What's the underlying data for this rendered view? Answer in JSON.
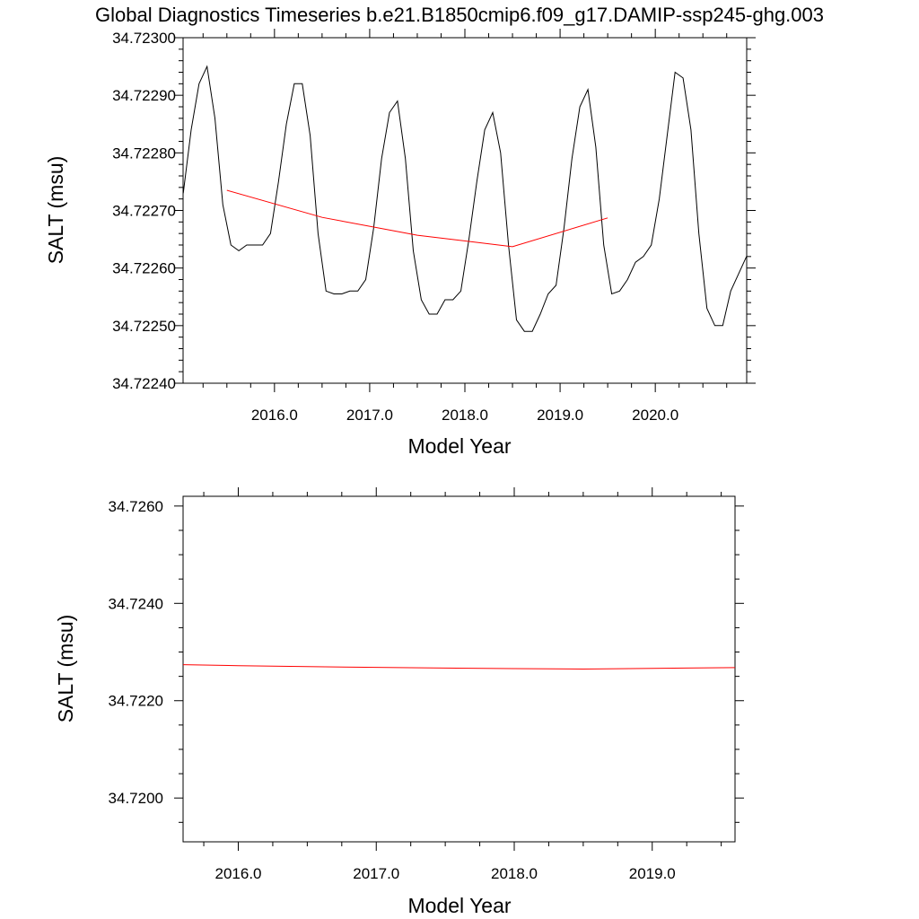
{
  "title": "Global Diagnostics Timeseries b.e21.B1850cmip6.f09_g17.DAMIP-ssp245-ghg.003",
  "chart_data": [
    {
      "type": "line",
      "xlabel": "Model Year",
      "ylabel": "SALT (msu)",
      "xlim": [
        2015.04,
        2020.96
      ],
      "ylim": [
        34.7224,
        34.723
      ],
      "x_ticks": [
        2016,
        2017,
        2018,
        2019,
        2020
      ],
      "x_tick_labels": [
        "2016.0",
        "2017.0",
        "2018.0",
        "2019.0",
        "2020.0"
      ],
      "y_ticks": [
        34.7224,
        34.7225,
        34.7226,
        34.7227,
        34.7228,
        34.7229,
        34.723
      ],
      "y_tick_labels": [
        "34.72240",
        "34.72250",
        "34.72260",
        "34.72270",
        "34.72280",
        "34.72290",
        "34.72300"
      ],
      "series": [
        {
          "color": "#000000",
          "x": [
            2015.042,
            2015.125,
            2015.208,
            2015.292,
            2015.375,
            2015.458,
            2015.542,
            2015.625,
            2015.708,
            2015.792,
            2015.875,
            2015.958,
            2016.042,
            2016.125,
            2016.208,
            2016.292,
            2016.375,
            2016.458,
            2016.542,
            2016.625,
            2016.708,
            2016.792,
            2016.875,
            2016.958,
            2017.042,
            2017.125,
            2017.208,
            2017.292,
            2017.375,
            2017.458,
            2017.542,
            2017.625,
            2017.708,
            2017.792,
            2017.875,
            2017.958,
            2018.042,
            2018.125,
            2018.208,
            2018.292,
            2018.375,
            2018.458,
            2018.542,
            2018.625,
            2018.708,
            2018.792,
            2018.875,
            2018.958,
            2019.042,
            2019.125,
            2019.208,
            2019.292,
            2019.375,
            2019.458,
            2019.542,
            2019.625,
            2019.708,
            2019.792,
            2019.875,
            2019.958,
            2020.042,
            2020.125,
            2020.208,
            2020.292,
            2020.375,
            2020.458,
            2020.542,
            2020.625,
            2020.708,
            2020.792,
            2020.875,
            2020.958
          ],
          "y": [
            34.72273,
            34.72284,
            34.72292,
            34.72295,
            34.72286,
            34.72271,
            34.72264,
            34.72263,
            34.72264,
            34.72264,
            34.72264,
            34.72266,
            34.72275,
            34.72285,
            34.72292,
            34.72292,
            34.72283,
            34.72266,
            34.72256,
            34.722555,
            34.722555,
            34.72256,
            34.72256,
            34.72258,
            34.72267,
            34.72279,
            34.72287,
            34.72289,
            34.72279,
            34.72263,
            34.722545,
            34.72252,
            34.72252,
            34.722545,
            34.722545,
            34.72256,
            34.72265,
            34.72275,
            34.72284,
            34.72287,
            34.7228,
            34.72264,
            34.72251,
            34.72249,
            34.72249,
            34.72252,
            34.722555,
            34.72257,
            34.72267,
            34.72279,
            34.72288,
            34.72291,
            34.72281,
            34.72264,
            34.722555,
            34.72256,
            34.72258,
            34.72261,
            34.72262,
            34.72264,
            34.72272,
            34.72283,
            34.72294,
            34.72293,
            34.72284,
            34.72266,
            34.72253,
            34.7225,
            34.7225,
            34.72256,
            34.72259,
            34.72262
          ]
        },
        {
          "color": "#ff0000",
          "x": [
            2015.5,
            2016.5,
            2017.5,
            2018.5,
            2019.5
          ],
          "y": [
            34.722735,
            34.722688,
            34.722657,
            34.722637,
            34.722687
          ]
        }
      ]
    },
    {
      "type": "line",
      "xlabel": "Model Year",
      "ylabel": "SALT (msu)",
      "xlim": [
        2015.6,
        2019.6
      ],
      "ylim": [
        34.7191,
        34.7262
      ],
      "x_ticks": [
        2016,
        2017,
        2018,
        2019
      ],
      "x_tick_labels": [
        "2016.0",
        "2017.0",
        "2018.0",
        "2019.0"
      ],
      "y_ticks": [
        34.72,
        34.722,
        34.724,
        34.726
      ],
      "y_tick_labels": [
        "34.7200",
        "34.7220",
        "34.7240",
        "34.7260"
      ],
      "series": [
        {
          "color": "#ff0000",
          "x": [
            2015.6,
            2016.0,
            2016.5,
            2017.0,
            2017.5,
            2018.0,
            2018.5,
            2019.0,
            2019.6
          ],
          "y": [
            34.72274,
            34.72272,
            34.7227,
            34.722685,
            34.72267,
            34.72266,
            34.72265,
            34.722665,
            34.72268
          ]
        }
      ]
    }
  ]
}
